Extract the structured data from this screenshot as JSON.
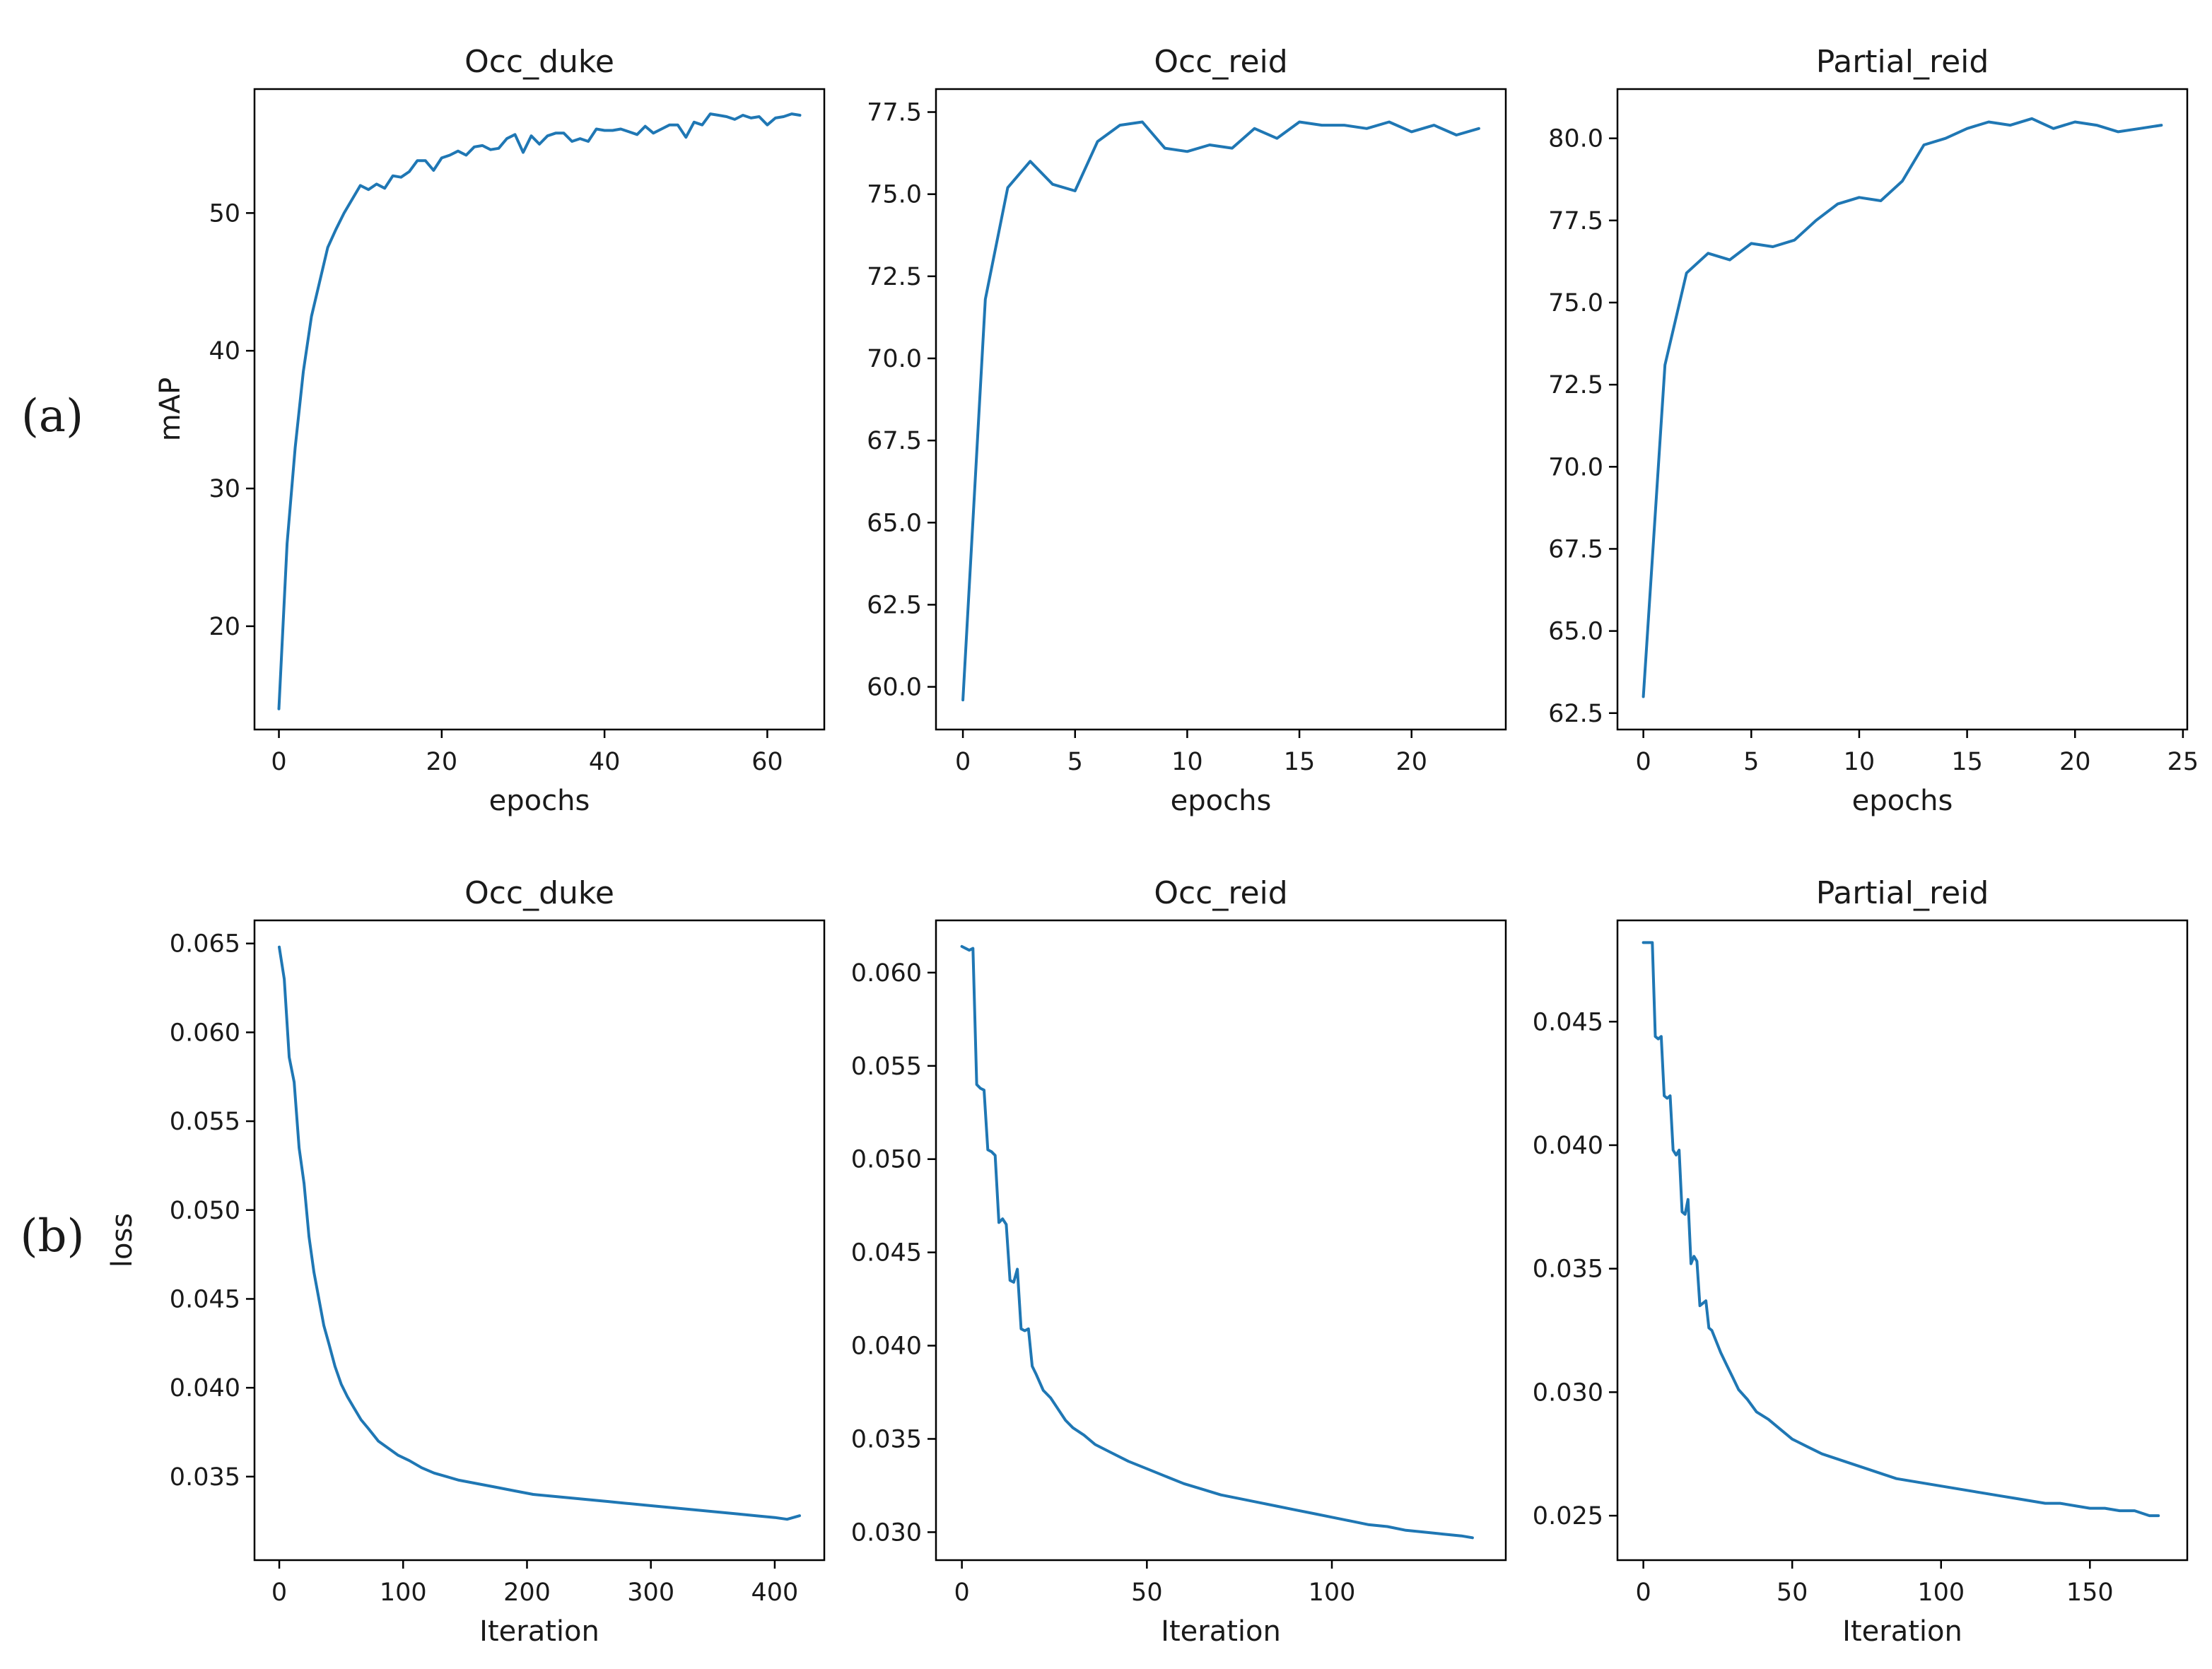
{
  "row_labels": [
    "(a)",
    "(b)"
  ],
  "colors": {
    "series": "#1f77b4",
    "axes": "#000000",
    "background": "#ffffff"
  },
  "chart_data": [
    {
      "type": "line",
      "row": "a",
      "title": "Occ_duke",
      "xlabel": "epochs",
      "ylabel": "mAP",
      "xlim": [
        -3,
        67
      ],
      "ylim": [
        12.5,
        59
      ],
      "xticks": [
        0,
        20,
        40,
        60
      ],
      "yticks": [
        20,
        30,
        40,
        50
      ],
      "ytick_labels": [
        "20",
        "30",
        "40",
        "50"
      ],
      "series": [
        {
          "name": "mAP",
          "x": [
            0,
            1,
            2,
            3,
            4,
            5,
            6,
            7,
            8,
            9,
            10,
            11,
            12,
            13,
            14,
            15,
            16,
            17,
            18,
            19,
            20,
            21,
            22,
            23,
            24,
            25,
            26,
            27,
            28,
            29,
            30,
            31,
            32,
            33,
            34,
            35,
            36,
            37,
            38,
            39,
            40,
            41,
            42,
            43,
            44,
            45,
            46,
            47,
            48,
            49,
            50,
            51,
            52,
            53,
            54,
            55,
            56,
            57,
            58,
            59,
            60,
            61,
            62,
            63,
            64
          ],
          "values": [
            14.0,
            26.0,
            33.0,
            38.5,
            42.5,
            45.0,
            47.5,
            48.8,
            50.0,
            51.0,
            52.0,
            51.7,
            52.1,
            51.8,
            52.7,
            52.6,
            53.0,
            53.8,
            53.8,
            53.1,
            54.0,
            54.2,
            54.5,
            54.2,
            54.8,
            54.9,
            54.6,
            54.7,
            55.4,
            55.7,
            54.4,
            55.6,
            55.0,
            55.6,
            55.8,
            55.8,
            55.2,
            55.4,
            55.2,
            56.1,
            56.0,
            56.0,
            56.1,
            55.9,
            55.7,
            56.3,
            55.8,
            56.1,
            56.4,
            56.4,
            55.5,
            56.6,
            56.4,
            57.2,
            57.1,
            57.0,
            56.8,
            57.1,
            56.9,
            57.0,
            56.4,
            56.9,
            57.0,
            57.2,
            57.1
          ]
        }
      ]
    },
    {
      "type": "line",
      "row": "a",
      "title": "Occ_reid",
      "xlabel": "epochs",
      "ylabel": "",
      "xlim": [
        -1.2,
        24.2
      ],
      "ylim": [
        58.7,
        78.2
      ],
      "xticks": [
        0,
        5,
        10,
        15,
        20
      ],
      "yticks": [
        60.0,
        62.5,
        65.0,
        67.5,
        70.0,
        72.5,
        75.0,
        77.5
      ],
      "ytick_labels": [
        "60.0",
        "62.5",
        "65.0",
        "67.5",
        "70.0",
        "72.5",
        "75.0",
        "77.5"
      ],
      "series": [
        {
          "name": "mAP",
          "x": [
            0,
            1,
            2,
            3,
            4,
            5,
            6,
            7,
            8,
            9,
            10,
            11,
            12,
            13,
            14,
            15,
            16,
            17,
            18,
            19,
            20,
            21,
            22,
            23
          ],
          "values": [
            59.6,
            71.8,
            75.2,
            76.0,
            75.3,
            75.1,
            76.6,
            77.1,
            77.2,
            76.4,
            76.3,
            76.5,
            76.4,
            77.0,
            76.7,
            77.2,
            77.1,
            77.1,
            77.0,
            77.2,
            76.9,
            77.1,
            76.8,
            77.0
          ]
        }
      ]
    },
    {
      "type": "line",
      "row": "a",
      "title": "Partial_reid",
      "xlabel": "epochs",
      "ylabel": "",
      "xlim": [
        -1.2,
        25.2
      ],
      "ylim": [
        62.0,
        81.5
      ],
      "xticks": [
        0,
        5,
        10,
        15,
        20,
        25
      ],
      "yticks": [
        62.5,
        65.0,
        67.5,
        70.0,
        72.5,
        75.0,
        77.5,
        80.0
      ],
      "ytick_labels": [
        "62.5",
        "65.0",
        "67.5",
        "70.0",
        "72.5",
        "75.0",
        "77.5",
        "80.0"
      ],
      "series": [
        {
          "name": "mAP",
          "x": [
            0,
            1,
            2,
            3,
            4,
            5,
            6,
            7,
            8,
            9,
            10,
            11,
            12,
            13,
            14,
            15,
            16,
            17,
            18,
            19,
            20,
            21,
            22,
            23,
            24
          ],
          "values": [
            63.0,
            73.1,
            75.9,
            76.5,
            76.3,
            76.8,
            76.7,
            76.9,
            77.5,
            78.0,
            78.2,
            78.1,
            78.7,
            79.8,
            80.0,
            80.3,
            80.5,
            80.4,
            80.6,
            80.3,
            80.5,
            80.4,
            80.2,
            80.3,
            80.4
          ]
        }
      ]
    },
    {
      "type": "line",
      "row": "b",
      "title": "Occ_duke",
      "xlabel": "Iteration",
      "ylabel": "loss",
      "xlim": [
        -20,
        440
      ],
      "ylim": [
        0.0303,
        0.0663
      ],
      "xticks": [
        0,
        100,
        200,
        300,
        400
      ],
      "yticks": [
        0.035,
        0.04,
        0.045,
        0.05,
        0.055,
        0.06,
        0.065
      ],
      "ytick_labels": [
        "0.035",
        "0.040",
        "0.045",
        "0.050",
        "0.055",
        "0.060",
        "0.065"
      ],
      "series": [
        {
          "name": "loss",
          "x": [
            0,
            4,
            8,
            12,
            16,
            20,
            24,
            28,
            32,
            36,
            40,
            45,
            50,
            55,
            60,
            66,
            72,
            80,
            88,
            96,
            105,
            115,
            125,
            135,
            145,
            160,
            175,
            190,
            205,
            220,
            235,
            250,
            265,
            280,
            295,
            310,
            325,
            340,
            355,
            370,
            385,
            400,
            410,
            420
          ],
          "values": [
            0.0648,
            0.063,
            0.0586,
            0.0572,
            0.0535,
            0.0515,
            0.0485,
            0.0465,
            0.045,
            0.0435,
            0.0425,
            0.0412,
            0.0402,
            0.0395,
            0.0389,
            0.0382,
            0.0377,
            0.037,
            0.0366,
            0.0362,
            0.0359,
            0.0355,
            0.0352,
            0.035,
            0.0348,
            0.0346,
            0.0344,
            0.0342,
            0.034,
            0.0339,
            0.0338,
            0.0337,
            0.0336,
            0.0335,
            0.0334,
            0.0333,
            0.0332,
            0.0331,
            0.033,
            0.0329,
            0.0328,
            0.0327,
            0.0326,
            0.0328
          ]
        }
      ]
    },
    {
      "type": "line",
      "row": "b",
      "title": "Occ_reid",
      "xlabel": "Iteration",
      "ylabel": "",
      "xlim": [
        -7,
        147
      ],
      "ylim": [
        0.0285,
        0.0628
      ],
      "xticks": [
        0,
        50,
        100
      ],
      "yticks": [
        0.03,
        0.035,
        0.04,
        0.045,
        0.05,
        0.055,
        0.06
      ],
      "ytick_labels": [
        "0.030",
        "0.035",
        "0.040",
        "0.045",
        "0.050",
        "0.055",
        "0.060"
      ],
      "series": [
        {
          "name": "loss",
          "x": [
            0,
            2,
            3,
            4,
            5,
            6,
            7,
            8,
            9,
            10,
            11,
            12,
            13,
            14,
            15,
            16,
            17,
            18,
            19,
            20,
            22,
            24,
            26,
            28,
            30,
            33,
            36,
            40,
            45,
            50,
            55,
            60,
            65,
            70,
            75,
            80,
            85,
            90,
            95,
            100,
            105,
            110,
            115,
            120,
            125,
            130,
            135,
            138
          ],
          "values": [
            0.0614,
            0.0612,
            0.0613,
            0.054,
            0.0538,
            0.0537,
            0.0505,
            0.0504,
            0.0502,
            0.0466,
            0.0468,
            0.0465,
            0.0435,
            0.0434,
            0.0441,
            0.0409,
            0.0408,
            0.0409,
            0.0389,
            0.0385,
            0.0376,
            0.0372,
            0.0366,
            0.036,
            0.0356,
            0.0352,
            0.0347,
            0.0343,
            0.0338,
            0.0334,
            0.033,
            0.0326,
            0.0323,
            0.032,
            0.0318,
            0.0316,
            0.0314,
            0.0312,
            0.031,
            0.0308,
            0.0306,
            0.0304,
            0.0303,
            0.0301,
            0.03,
            0.0299,
            0.0298,
            0.0297
          ]
        }
      ]
    },
    {
      "type": "line",
      "row": "b",
      "title": "Partial_reid",
      "xlabel": "Iteration",
      "ylabel": "",
      "xlim": [
        -8.7,
        182.7
      ],
      "ylim": [
        0.0232,
        0.0491
      ],
      "xticks": [
        0,
        50,
        100,
        150
      ],
      "yticks": [
        0.025,
        0.03,
        0.035,
        0.04,
        0.045
      ],
      "ytick_labels": [
        "0.025",
        "0.030",
        "0.035",
        "0.040",
        "0.045"
      ],
      "series": [
        {
          "name": "loss",
          "x": [
            0,
            3,
            4,
            5,
            6,
            7,
            8,
            9,
            10,
            11,
            12,
            13,
            14,
            15,
            16,
            17,
            18,
            19,
            20,
            21,
            22,
            23,
            24,
            26,
            28,
            30,
            32,
            35,
            38,
            42,
            46,
            50,
            55,
            60,
            65,
            70,
            75,
            80,
            85,
            90,
            95,
            100,
            105,
            110,
            115,
            120,
            125,
            130,
            135,
            140,
            145,
            150,
            155,
            160,
            165,
            170,
            173
          ],
          "values": [
            0.0482,
            0.0482,
            0.0444,
            0.0443,
            0.0444,
            0.042,
            0.0419,
            0.042,
            0.0398,
            0.0396,
            0.0398,
            0.0373,
            0.0372,
            0.0378,
            0.0352,
            0.0355,
            0.0353,
            0.0335,
            0.0336,
            0.0337,
            0.0326,
            0.0325,
            0.0322,
            0.0316,
            0.0311,
            0.0306,
            0.0301,
            0.0297,
            0.0292,
            0.0289,
            0.0285,
            0.0281,
            0.0278,
            0.0275,
            0.0273,
            0.0271,
            0.0269,
            0.0267,
            0.0265,
            0.0264,
            0.0263,
            0.0262,
            0.0261,
            0.026,
            0.0259,
            0.0258,
            0.0257,
            0.0256,
            0.0255,
            0.0255,
            0.0254,
            0.0253,
            0.0253,
            0.0252,
            0.0252,
            0.025,
            0.025
          ]
        }
      ]
    }
  ]
}
